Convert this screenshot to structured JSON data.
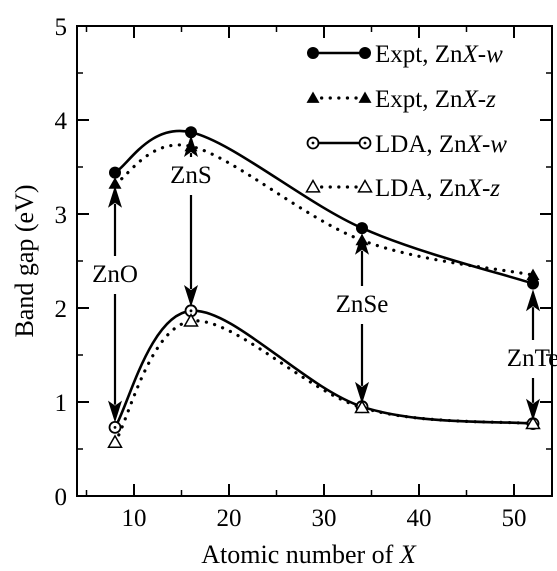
{
  "chart_data": {
    "type": "line",
    "xlabel_prefix": "Atomic number of ",
    "xlabel_var": "X",
    "ylabel": "Band gap (eV)",
    "xlim": [
      4,
      54
    ],
    "ylim": [
      0,
      5
    ],
    "xticks": [
      10,
      20,
      30,
      40,
      50
    ],
    "yticks": [
      0,
      1,
      2,
      3,
      4,
      5
    ],
    "grid": false,
    "legend_position": "top-right",
    "series": [
      {
        "name": "Expt, ZnX-w",
        "legend": {
          "a": "Expt, Zn",
          "b": "X",
          "c": "-",
          "d": "w"
        },
        "line": "solid",
        "marker": "circle-filled",
        "x": [
          8,
          16,
          34,
          52
        ],
        "y": [
          3.44,
          3.87,
          2.85,
          2.26
        ]
      },
      {
        "name": "Expt, ZnX-z",
        "legend": {
          "a": "Expt, Zn",
          "b": "X",
          "c": "-",
          "d": "z"
        },
        "line": "dotted",
        "marker": "triangle-filled",
        "x": [
          8,
          16,
          34,
          52
        ],
        "y": [
          3.32,
          3.72,
          2.72,
          2.35
        ]
      },
      {
        "name": "LDA, ZnX-w",
        "legend": {
          "a": "LDA, Zn",
          "b": "X",
          "c": "-",
          "d": "w"
        },
        "line": "solid",
        "marker": "circle-open",
        "x": [
          8,
          16,
          34,
          52
        ],
        "y": [
          0.73,
          1.97,
          0.95,
          0.77
        ]
      },
      {
        "name": "LDA, ZnX-z",
        "legend": {
          "a": "LDA, Zn",
          "b": "X",
          "c": "-",
          "d": "z"
        },
        "line": "dotted",
        "marker": "triangle-open",
        "x": [
          8,
          16,
          34,
          52
        ],
        "y": [
          0.57,
          1.86,
          0.94,
          0.77
        ]
      }
    ],
    "annotations": [
      {
        "label": "ZnO",
        "x": 8
      },
      {
        "label": "ZnS",
        "x": 16
      },
      {
        "label": "ZnSe",
        "x": 34
      },
      {
        "label": "ZnTe",
        "x": 52
      }
    ]
  }
}
